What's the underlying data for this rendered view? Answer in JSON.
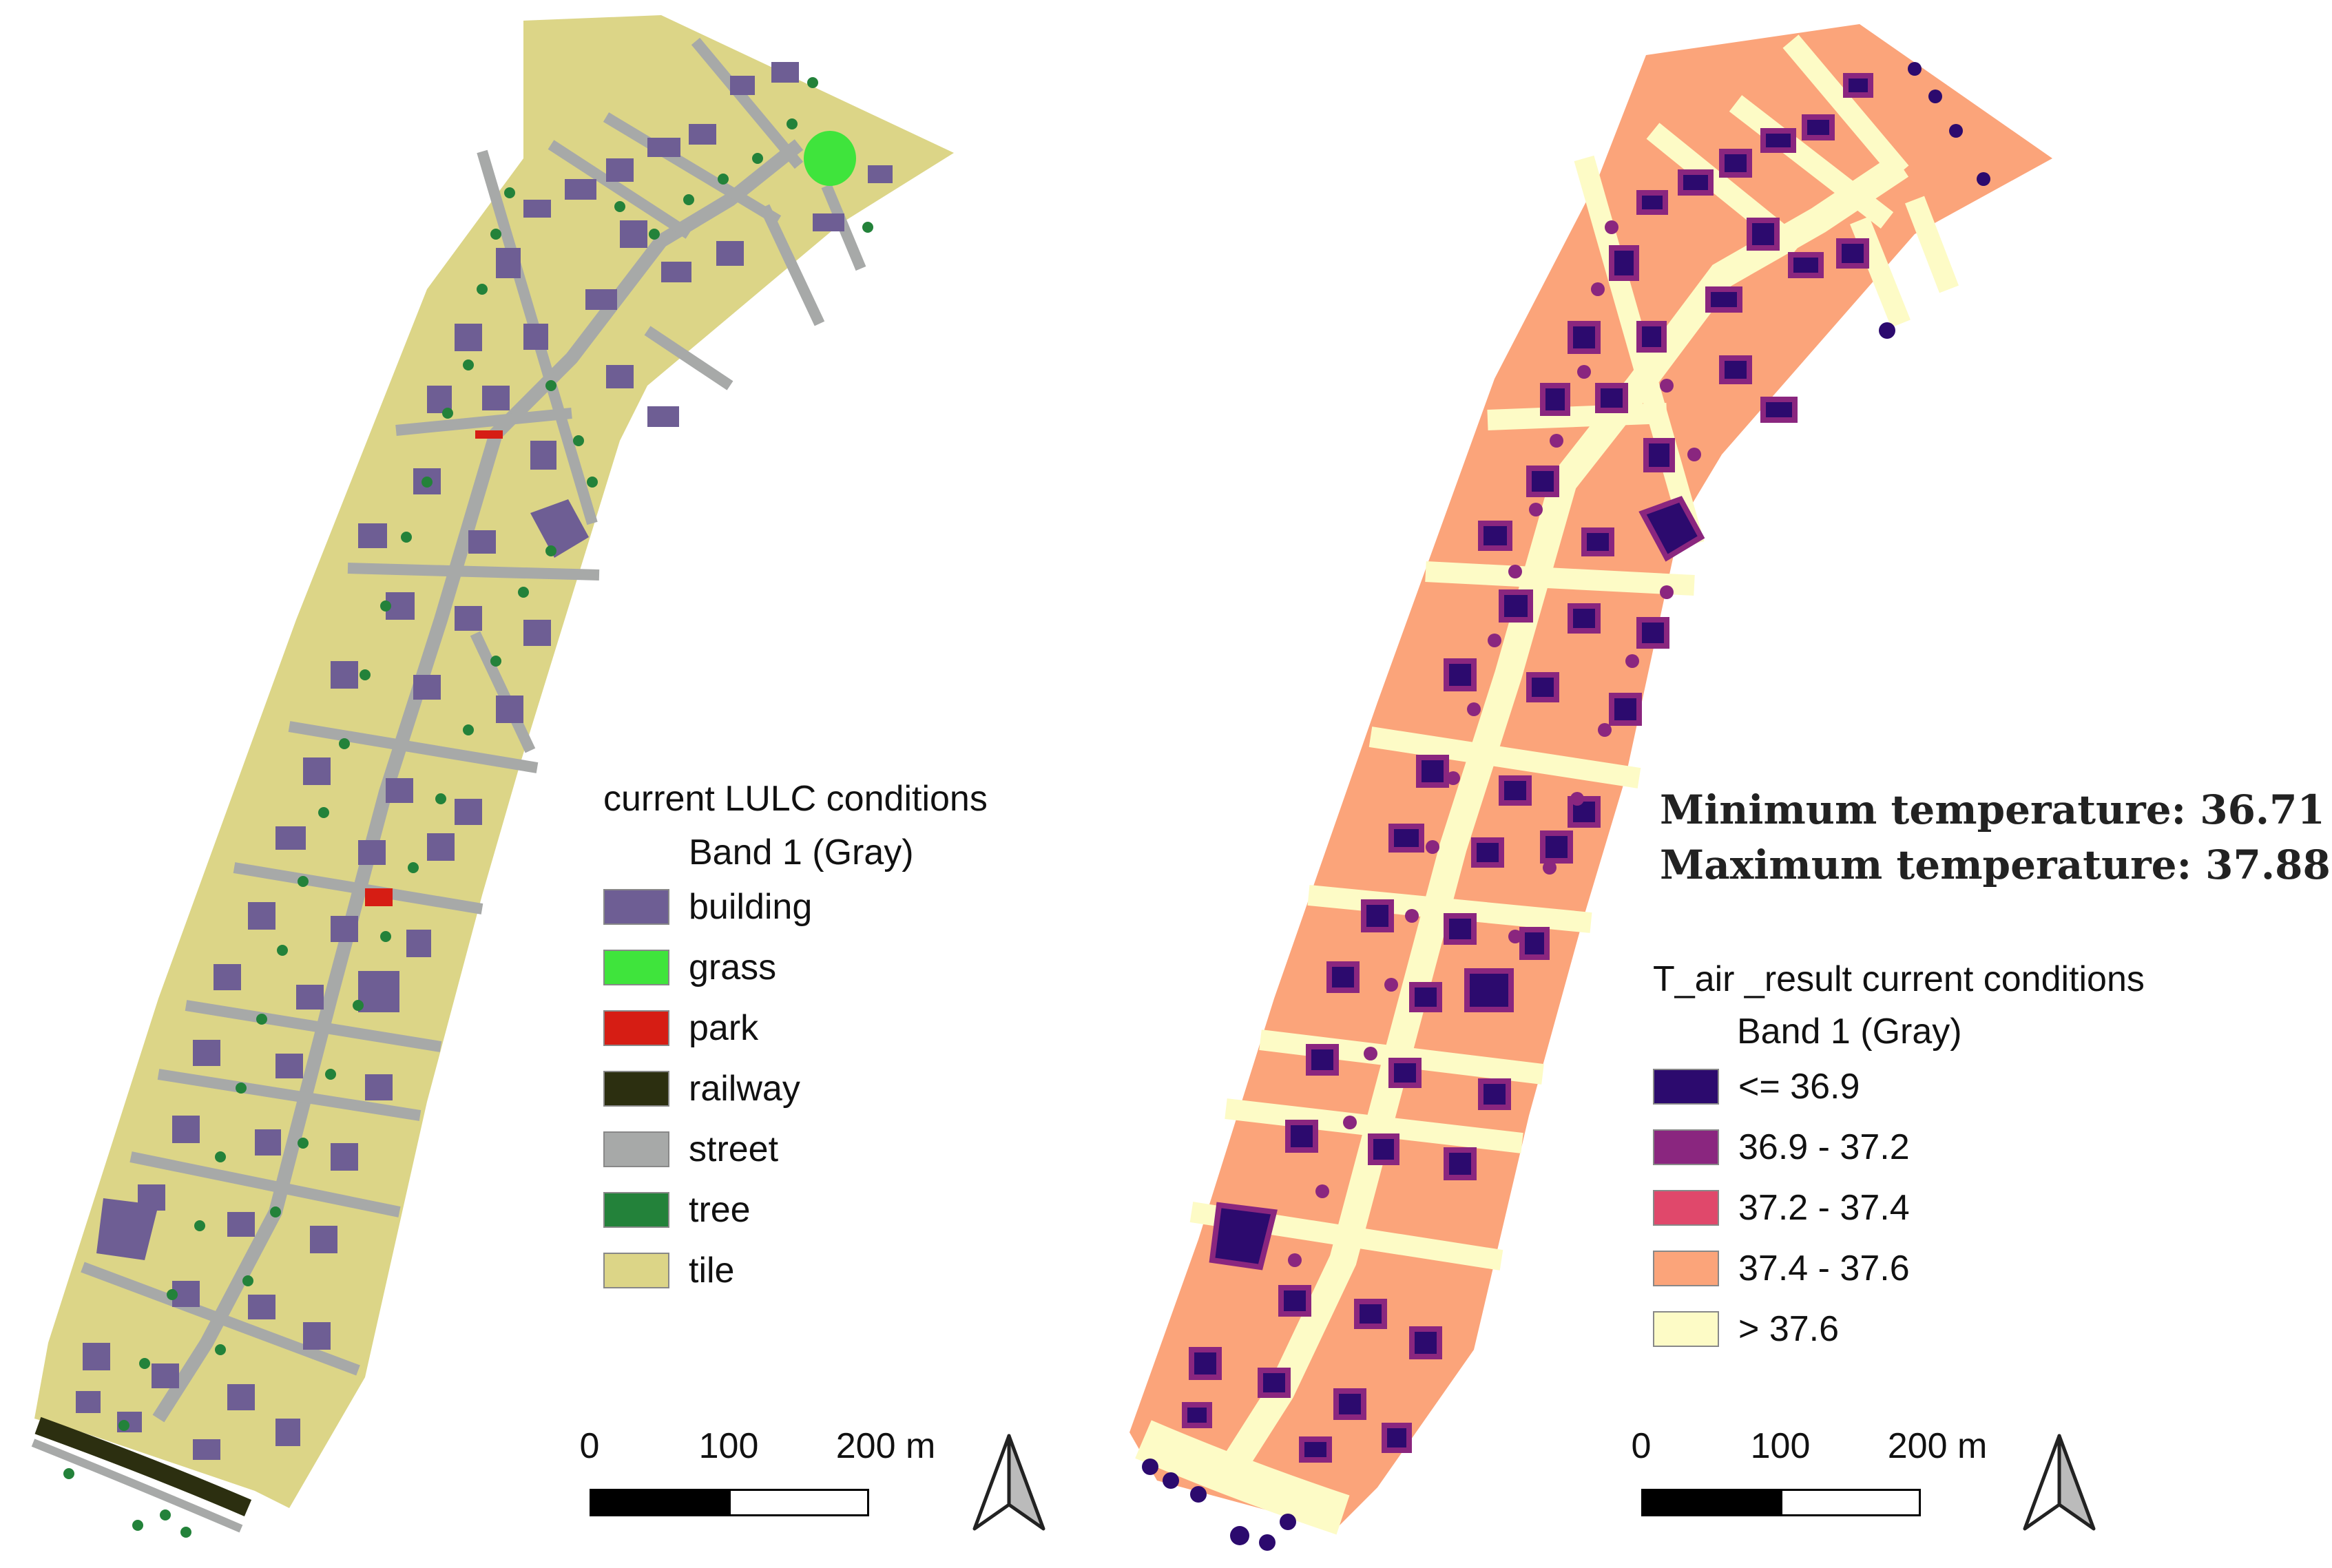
{
  "left_panel": {
    "legend": {
      "title": "current LULC conditions",
      "subtitle": "Band 1 (Gray)",
      "items": [
        {
          "label": "building",
          "color": "#6e5e94"
        },
        {
          "label": "grass",
          "color": "#3fe43c"
        },
        {
          "label": "park",
          "color": "#d61d14"
        },
        {
          "label": "railway",
          "color": "#2c2f10"
        },
        {
          "label": "street",
          "color": "#a7a9a8"
        },
        {
          "label": "tree",
          "color": "#23823a"
        },
        {
          "label": "tile",
          "color": "#dcd587"
        }
      ]
    },
    "scale": {
      "labels": [
        "0",
        "100",
        "200 m"
      ]
    }
  },
  "right_panel": {
    "stats": {
      "min": "Minimum temperature: 36.71 ºC",
      "max": "Maximum temperature: 37.88 ºC"
    },
    "legend": {
      "title": "T_air _result current conditions",
      "subtitle": "Band 1 (Gray)",
      "items": [
        {
          "label": "<= 36.9",
          "color": "#2c0a6e"
        },
        {
          "label": "36.9 - 37.2",
          "color": "#8a267f"
        },
        {
          "label": "37.2 - 37.4",
          "color": "#e0486b"
        },
        {
          "label": "37.4 - 37.6",
          "color": "#fba47a"
        },
        {
          "label": "> 37.6",
          "color": "#fdfbc6"
        }
      ]
    },
    "scale": {
      "labels": [
        "0",
        "100",
        "200 m"
      ]
    }
  }
}
